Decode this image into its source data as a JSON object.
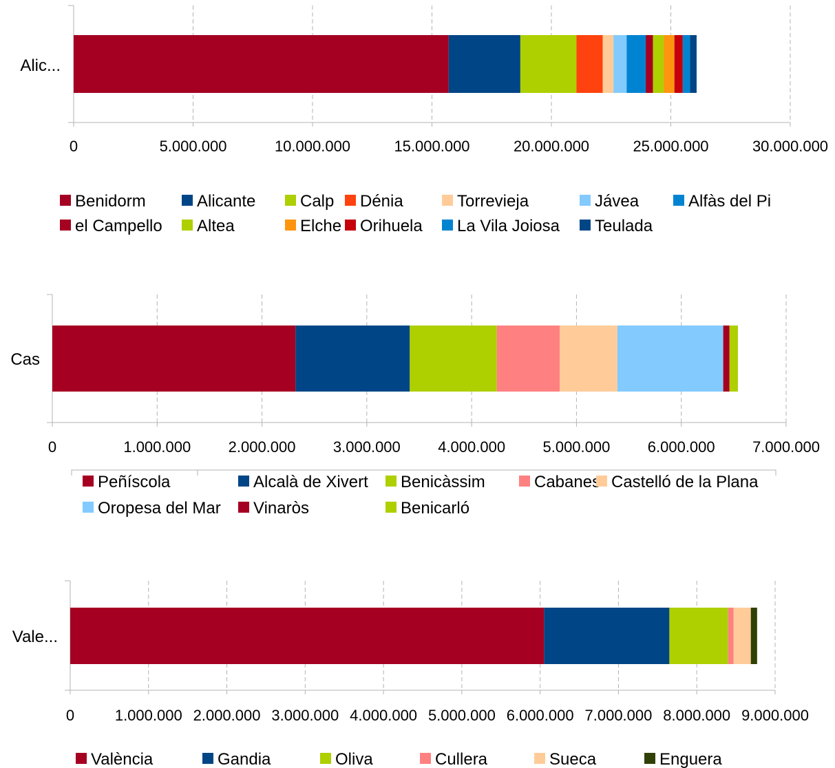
{
  "chart_data": [
    {
      "type": "bar",
      "orientation": "horizontal",
      "stacked": true,
      "categories": [
        "Alic..."
      ],
      "xlim": [
        0,
        30000000
      ],
      "ticks": [
        "0",
        "5.000.000",
        "10.000.000",
        "15.000.000",
        "20.000.000",
        "25.000.000",
        "30.000.000"
      ],
      "tick_values": [
        0,
        5000000,
        10000000,
        15000000,
        20000000,
        25000000,
        30000000
      ],
      "grid": true,
      "legend_position": "bottom",
      "series": [
        {
          "name": "Benidorm",
          "values": [
            15700000
          ],
          "color": "#a50021"
        },
        {
          "name": "Alicante",
          "values": [
            3000000
          ],
          "color": "#004586"
        },
        {
          "name": "Calp",
          "values": [
            2350000
          ],
          "color": "#aecf00"
        },
        {
          "name": "Dénia",
          "values": [
            1100000
          ],
          "color": "#ff420e"
        },
        {
          "name": "Torrevieja",
          "values": [
            450000
          ],
          "color": "#ffcc99"
        },
        {
          "name": "Jávea",
          "values": [
            550000
          ],
          "color": "#83caff"
        },
        {
          "name": "Alfàs del Pi",
          "values": [
            800000
          ],
          "color": "#0084d1"
        },
        {
          "name": "el Campello",
          "values": [
            300000
          ],
          "color": "#a50021"
        },
        {
          "name": "Altea",
          "values": [
            450000
          ],
          "color": "#aecf00"
        },
        {
          "name": "Elche",
          "values": [
            450000
          ],
          "color": "#ff950e"
        },
        {
          "name": "Orihuela",
          "values": [
            350000
          ],
          "color": "#c5000b"
        },
        {
          "name": "La Vila Joiosa",
          "values": [
            300000
          ],
          "color": "#0084d1"
        },
        {
          "name": "Teulada",
          "values": [
            280000
          ],
          "color": "#004586"
        }
      ]
    },
    {
      "type": "bar",
      "orientation": "horizontal",
      "stacked": true,
      "categories": [
        "Cas"
      ],
      "xlim": [
        0,
        7000000
      ],
      "ticks": [
        "0",
        "1.000.000",
        "2.000.000",
        "3.000.000",
        "4.000.000",
        "5.000.000",
        "6.000.000",
        "7.000.000"
      ],
      "tick_values": [
        0,
        1000000,
        2000000,
        3000000,
        4000000,
        5000000,
        6000000,
        7000000
      ],
      "grid": true,
      "legend_position": "bottom",
      "series": [
        {
          "name": "Peñíscola",
          "values": [
            2320000
          ],
          "color": "#a50021"
        },
        {
          "name": "Alcalà de Xivert",
          "values": [
            1090000
          ],
          "color": "#004586"
        },
        {
          "name": "Benicàssim",
          "values": [
            830000
          ],
          "color": "#aecf00"
        },
        {
          "name": "Cabanes",
          "values": [
            600000
          ],
          "color": "#ff8080"
        },
        {
          "name": "Castelló de la Plana",
          "values": [
            550000
          ],
          "color": "#ffcc99"
        },
        {
          "name": "Oropesa del Mar",
          "values": [
            1010000
          ],
          "color": "#83caff"
        },
        {
          "name": "Vinaròs",
          "values": [
            60000
          ],
          "color": "#a50021"
        },
        {
          "name": "Benicarló",
          "values": [
            80000
          ],
          "color": "#aecf00"
        }
      ]
    },
    {
      "type": "bar",
      "orientation": "horizontal",
      "stacked": true,
      "categories": [
        "Vale..."
      ],
      "xlim": [
        0,
        9000000
      ],
      "ticks": [
        "0",
        "1.000.000",
        "2.000.000",
        "3.000.000",
        "4.000.000",
        "5.000.000",
        "6.000.000",
        "7.000.000",
        "8.000.000",
        "9.000.000"
      ],
      "tick_values": [
        0,
        1000000,
        2000000,
        3000000,
        4000000,
        5000000,
        6000000,
        7000000,
        8000000,
        9000000
      ],
      "grid": true,
      "legend_position": "bottom",
      "series": [
        {
          "name": "València",
          "values": [
            6050000
          ],
          "color": "#a50021"
        },
        {
          "name": "Gandia",
          "values": [
            1600000
          ],
          "color": "#004586"
        },
        {
          "name": "Oliva",
          "values": [
            750000
          ],
          "color": "#aecf00"
        },
        {
          "name": "Cullera",
          "values": [
            70000
          ],
          "color": "#ff8080"
        },
        {
          "name": "Sueca",
          "values": [
            220000
          ],
          "color": "#ffcc99"
        },
        {
          "name": "Enguera",
          "values": [
            80000
          ],
          "color": "#314004"
        }
      ]
    }
  ]
}
